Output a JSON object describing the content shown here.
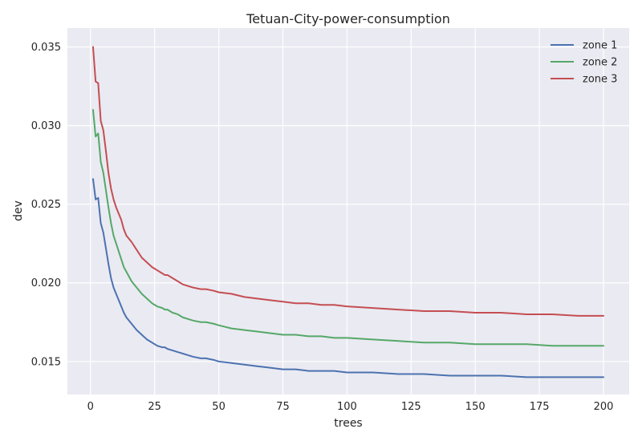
{
  "chart_data": {
    "type": "line",
    "title": "Tetuan-City-power-consumption",
    "xlabel": "trees",
    "ylabel": "dev",
    "xlim": [
      -9,
      210
    ],
    "ylim": [
      0.0129,
      0.0362
    ],
    "xticks": [
      0,
      25,
      50,
      75,
      100,
      125,
      150,
      175,
      200
    ],
    "yticks": [
      0.015,
      0.02,
      0.025,
      0.03,
      0.035
    ],
    "ytick_labels": [
      "0.015",
      "0.020",
      "0.025",
      "0.030",
      "0.035"
    ],
    "grid": true,
    "legend_position": "top-right",
    "series": [
      {
        "name": "zone 1",
        "color": "#4c72b0",
        "x": [
          1,
          2,
          3,
          4,
          5,
          6,
          7,
          8,
          9,
          10,
          12,
          13,
          14,
          16,
          18,
          20,
          22,
          24,
          26,
          28,
          29,
          30,
          32,
          34,
          36,
          38,
          40,
          43,
          45,
          48,
          50,
          55,
          60,
          65,
          70,
          75,
          80,
          85,
          90,
          95,
          100,
          110,
          120,
          130,
          140,
          150,
          160,
          170,
          180,
          190,
          200
        ],
        "values": [
          0.0266,
          0.0253,
          0.0254,
          0.0238,
          0.0232,
          0.0222,
          0.0212,
          0.0203,
          0.0197,
          0.0193,
          0.0185,
          0.0181,
          0.0178,
          0.0174,
          0.017,
          0.0167,
          0.0164,
          0.0162,
          0.016,
          0.0159,
          0.0159,
          0.0158,
          0.0157,
          0.0156,
          0.0155,
          0.0154,
          0.0153,
          0.0152,
          0.0152,
          0.0151,
          0.015,
          0.0149,
          0.0148,
          0.0147,
          0.0146,
          0.0145,
          0.0145,
          0.0144,
          0.0144,
          0.0144,
          0.0143,
          0.0143,
          0.0142,
          0.0142,
          0.0141,
          0.0141,
          0.0141,
          0.014,
          0.014,
          0.014,
          0.014
        ]
      },
      {
        "name": "zone 2",
        "color": "#55a868",
        "x": [
          1,
          2,
          3,
          4,
          5,
          6,
          7,
          8,
          9,
          10,
          12,
          13,
          14,
          16,
          18,
          20,
          22,
          24,
          26,
          28,
          29,
          30,
          32,
          34,
          36,
          38,
          40,
          43,
          45,
          48,
          50,
          55,
          60,
          65,
          70,
          75,
          80,
          85,
          90,
          95,
          100,
          110,
          120,
          130,
          140,
          150,
          160,
          170,
          180,
          190,
          200
        ],
        "values": [
          0.031,
          0.0293,
          0.0295,
          0.0277,
          0.027,
          0.0259,
          0.0248,
          0.0238,
          0.023,
          0.0225,
          0.0215,
          0.021,
          0.0207,
          0.0201,
          0.0197,
          0.0193,
          0.019,
          0.0187,
          0.0185,
          0.0184,
          0.0183,
          0.0183,
          0.0181,
          0.018,
          0.0178,
          0.0177,
          0.0176,
          0.0175,
          0.0175,
          0.0174,
          0.0173,
          0.0171,
          0.017,
          0.0169,
          0.0168,
          0.0167,
          0.0167,
          0.0166,
          0.0166,
          0.0165,
          0.0165,
          0.0164,
          0.0163,
          0.0162,
          0.0162,
          0.0161,
          0.0161,
          0.0161,
          0.016,
          0.016,
          0.016
        ]
      },
      {
        "name": "zone 3",
        "color": "#c44e52",
        "x": [
          1,
          2,
          3,
          4,
          5,
          6,
          7,
          8,
          9,
          10,
          12,
          13,
          14,
          16,
          18,
          20,
          22,
          24,
          26,
          28,
          29,
          30,
          32,
          34,
          36,
          38,
          40,
          43,
          45,
          48,
          50,
          55,
          60,
          65,
          70,
          75,
          80,
          85,
          90,
          95,
          100,
          110,
          120,
          130,
          140,
          150,
          160,
          170,
          180,
          190,
          200
        ],
        "values": [
          0.035,
          0.0328,
          0.0327,
          0.0303,
          0.0297,
          0.0284,
          0.027,
          0.026,
          0.0253,
          0.0248,
          0.024,
          0.0234,
          0.023,
          0.0226,
          0.0221,
          0.0216,
          0.0213,
          0.021,
          0.0208,
          0.0206,
          0.0205,
          0.0205,
          0.0203,
          0.0201,
          0.0199,
          0.0198,
          0.0197,
          0.0196,
          0.0196,
          0.0195,
          0.0194,
          0.0193,
          0.0191,
          0.019,
          0.0189,
          0.0188,
          0.0187,
          0.0187,
          0.0186,
          0.0186,
          0.0185,
          0.0184,
          0.0183,
          0.0182,
          0.0182,
          0.0181,
          0.0181,
          0.018,
          0.018,
          0.0179,
          0.0179
        ]
      }
    ]
  }
}
